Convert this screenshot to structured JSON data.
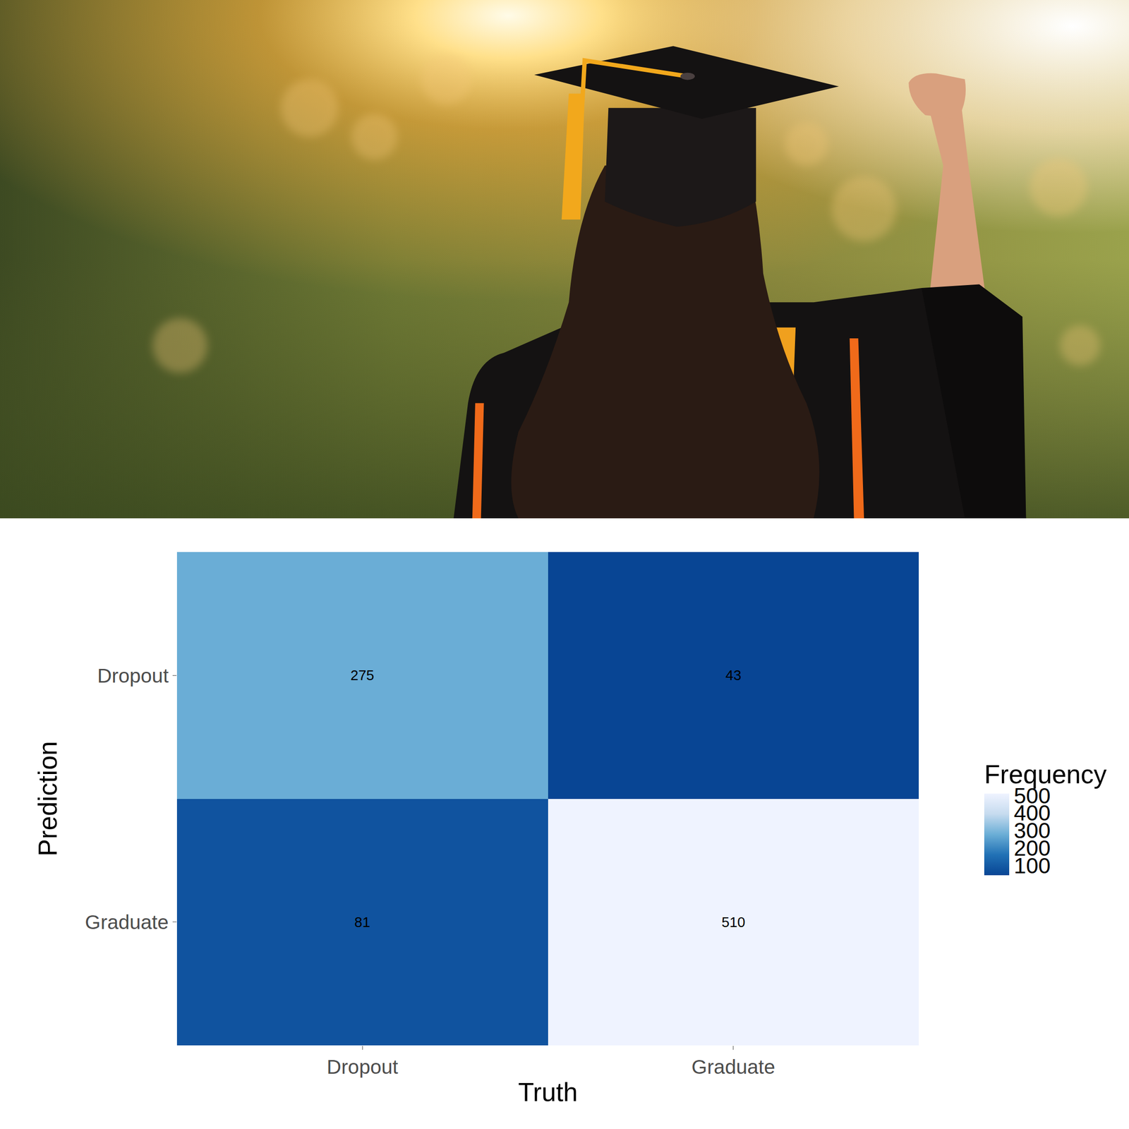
{
  "chart_data": {
    "type": "heatmap",
    "x_label": "Truth",
    "y_label": "Prediction",
    "x_categories": [
      "Dropout",
      "Graduate"
    ],
    "y_categories": [
      "Dropout",
      "Graduate"
    ],
    "cells": [
      [
        275,
        43
      ],
      [
        81,
        510
      ]
    ],
    "data_labels": true,
    "colorbar": {
      "title": "Frequency",
      "range": [
        43,
        510
      ],
      "ticks": [
        100,
        200,
        300,
        400,
        500
      ]
    }
  }
}
